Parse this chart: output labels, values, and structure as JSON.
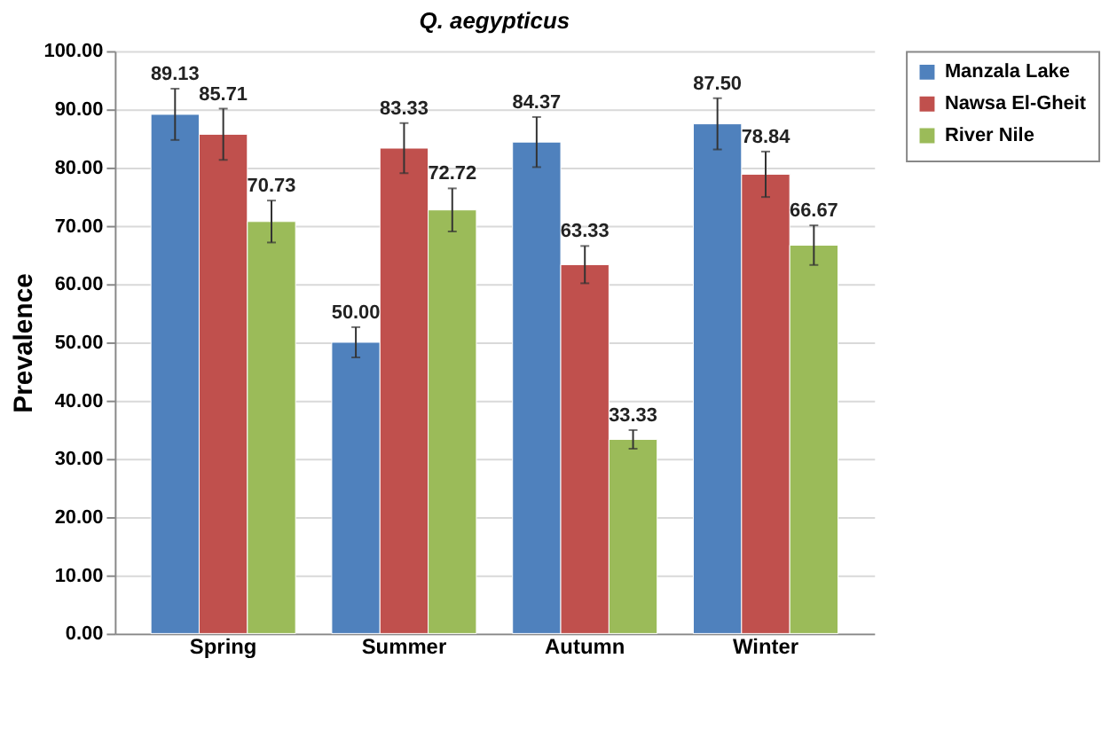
{
  "chart_data": {
    "type": "bar",
    "title": "Q. aegypticus",
    "ylabel": "Prevalence",
    "categories": [
      "Spring",
      "Summer",
      "Autumn",
      "Winter"
    ],
    "series": [
      {
        "name": "Manzala Lake",
        "color": "#4f81bd",
        "values": [
          89.13,
          50.0,
          84.37,
          87.5
        ],
        "value_labels": [
          "89.13",
          "50.00",
          "84.37",
          "87.50"
        ],
        "errors": [
          4.4,
          2.6,
          4.3,
          4.4
        ]
      },
      {
        "name": "Nawsa El-Gheit",
        "color": "#c0504d",
        "values": [
          85.71,
          83.33,
          63.33,
          78.84
        ],
        "value_labels": [
          "85.71",
          "83.33",
          "63.33",
          "78.84"
        ],
        "errors": [
          4.4,
          4.3,
          3.2,
          3.9
        ]
      },
      {
        "name": "River Nile",
        "color": "#9bbb59",
        "values": [
          70.73,
          72.72,
          33.33,
          66.67
        ],
        "value_labels": [
          "70.73",
          "72.72",
          "33.33",
          "66.67"
        ],
        "errors": [
          3.6,
          3.7,
          1.6,
          3.4
        ]
      }
    ],
    "ylim": [
      0,
      100
    ],
    "yticks": [
      {
        "value": 0,
        "label": "0.00"
      },
      {
        "value": 10,
        "label": "10.00"
      },
      {
        "value": 20,
        "label": "20.00"
      },
      {
        "value": 30,
        "label": "30.00"
      },
      {
        "value": 40,
        "label": "40.00"
      },
      {
        "value": 50,
        "label": "50.00"
      },
      {
        "value": 60,
        "label": "60.00"
      },
      {
        "value": 70,
        "label": "70.00"
      },
      {
        "value": 80,
        "label": "80.00"
      },
      {
        "value": 90,
        "label": "90.00"
      },
      {
        "value": 100,
        "label": "100.00"
      }
    ],
    "grid": "y",
    "legend": "top right",
    "data_labels": true
  }
}
